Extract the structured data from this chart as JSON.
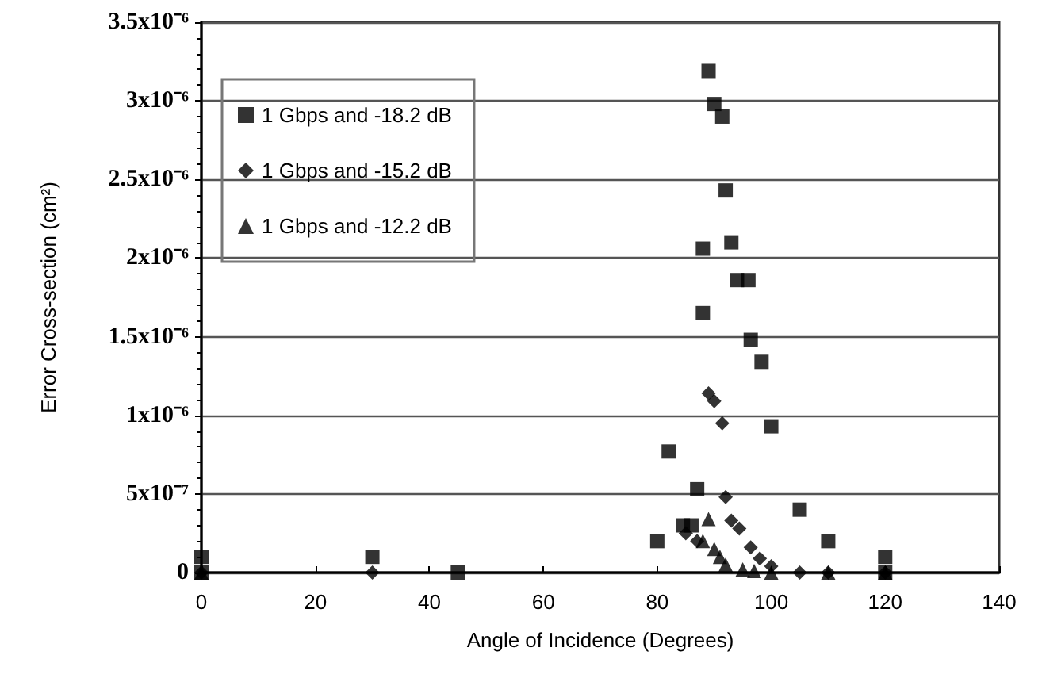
{
  "chart_data": {
    "type": "scatter",
    "xlabel": "Angle of Incidence (Degrees)",
    "ylabel": "Error Cross-section (cm²)",
    "xlim": [
      0,
      140
    ],
    "xticks": [
      0,
      20,
      40,
      60,
      80,
      100,
      120,
      140
    ],
    "ylim": [
      0,
      3.5e-06
    ],
    "yticks": [
      {
        "value": 0,
        "label": "0"
      },
      {
        "value": 5e-07,
        "label": "5x10⁻⁷"
      },
      {
        "value": 1e-06,
        "label": "1x10⁻⁶"
      },
      {
        "value": 1.5e-06,
        "label": "1.5x10⁻⁶"
      },
      {
        "value": 2e-06,
        "label": "2x10⁻⁶"
      },
      {
        "value": 2.5e-06,
        "label": "2.5x10⁻⁶"
      },
      {
        "value": 3e-06,
        "label": "3x10⁻⁶"
      },
      {
        "value": 3.5e-06,
        "label": "3.5x10⁻⁶"
      }
    ],
    "grid": "y",
    "legend": "top left",
    "series": [
      {
        "name": "1 Gbps and -18.2 dB",
        "color": "#000000",
        "marker": "square",
        "x": [
          0,
          0,
          30,
          45,
          80,
          82,
          84.5,
          86,
          87,
          88,
          88,
          89,
          90,
          91.4,
          92,
          93,
          94,
          96,
          96.4,
          98.3,
          100,
          105,
          110,
          120,
          120
        ],
        "values": [
          1e-07,
          0,
          1e-07,
          0,
          2e-07,
          7.7e-07,
          3e-07,
          3e-07,
          5.3e-07,
          1.65e-06,
          2.06e-06,
          3.19e-06,
          2.98e-06,
          2.9e-06,
          2.43e-06,
          2.1e-06,
          1.86e-06,
          1.86e-06,
          1.48e-06,
          1.34e-06,
          9.3e-07,
          4e-07,
          2e-07,
          1e-07,
          0
        ]
      },
      {
        "name": "1 Gbps and -15.2 dB",
        "color": "#000000",
        "marker": "diamond",
        "x": [
          0,
          30,
          85,
          87,
          89,
          90,
          91.4,
          92,
          93,
          94.4,
          96.4,
          98,
          100,
          105,
          110,
          120
        ],
        "values": [
          0,
          0,
          2.5e-07,
          2e-07,
          1.14e-06,
          1.09e-06,
          9.5e-07,
          4.8e-07,
          3.3e-07,
          2.8e-07,
          1.6e-07,
          9e-08,
          4e-08,
          0,
          0,
          0
        ]
      },
      {
        "name": "1 Gbps and -12.2 dB",
        "color": "#000000",
        "marker": "triangle",
        "x": [
          0,
          88,
          89,
          90,
          91,
          92,
          95,
          97,
          100,
          110,
          120
        ],
        "values": [
          0,
          2e-07,
          3.4e-07,
          1.5e-07,
          1e-07,
          5e-08,
          2e-08,
          1e-08,
          0,
          0,
          0
        ]
      }
    ]
  }
}
